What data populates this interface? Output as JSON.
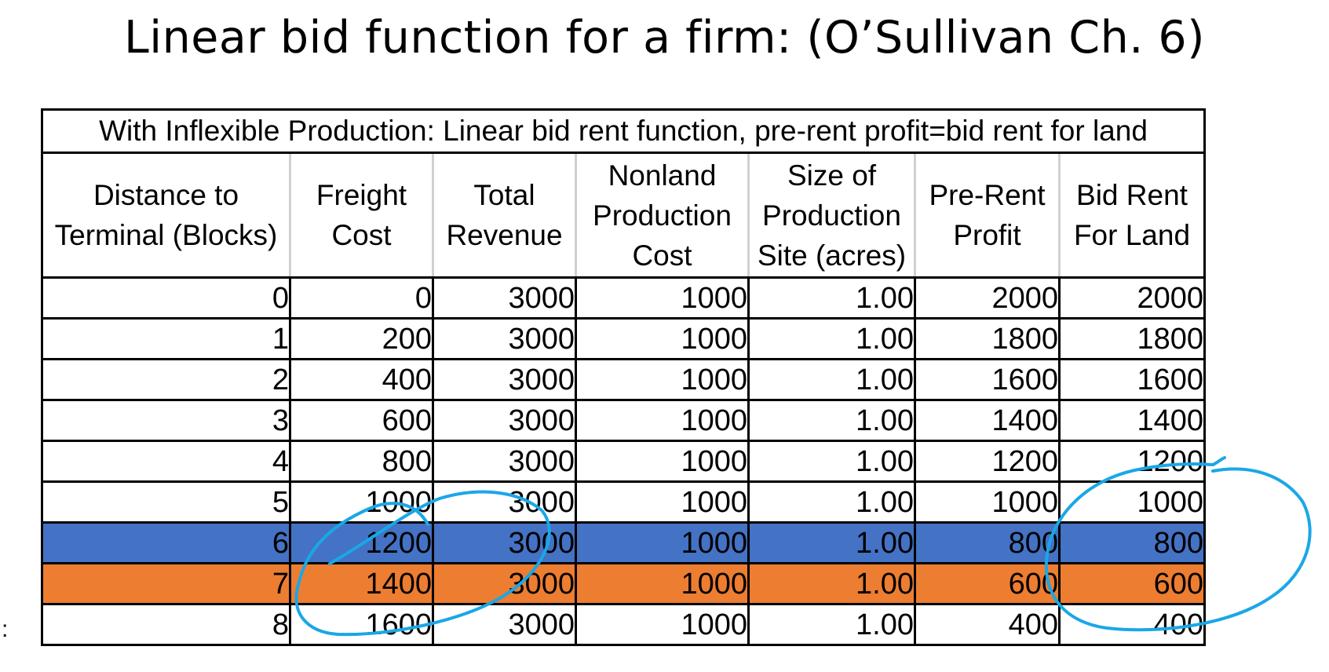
{
  "title": "Linear bid function for a firm: (O’Sullivan Ch. 6)",
  "side_mark": ":",
  "table": {
    "caption": "With Inflexible Production: Linear bid rent function, pre-rent profit=bid rent for land",
    "headers": [
      "Distance to\nTerminal (Blocks)",
      "Freight\nCost",
      "Total\nRevenue",
      "Nonland\nProduction\nCost",
      "Size of\nProduction\nSite (acres)",
      "Pre-Rent\nProfit",
      "Bid Rent\nFor Land"
    ],
    "rows": [
      [
        "0",
        "0",
        "3000",
        "1000",
        "1.00",
        "2000",
        "2000"
      ],
      [
        "1",
        "200",
        "3000",
        "1000",
        "1.00",
        "1800",
        "1800"
      ],
      [
        "2",
        "400",
        "3000",
        "1000",
        "1.00",
        "1600",
        "1600"
      ],
      [
        "3",
        "600",
        "3000",
        "1000",
        "1.00",
        "1400",
        "1400"
      ],
      [
        "4",
        "800",
        "3000",
        "1000",
        "1.00",
        "1200",
        "1200"
      ],
      [
        "5",
        "1000",
        "3000",
        "1000",
        "1.00",
        "1000",
        "1000"
      ],
      [
        "6",
        "1200",
        "3000",
        "1000",
        "1.00",
        "800",
        "800"
      ],
      [
        "7",
        "1400",
        "3000",
        "1000",
        "1.00",
        "600",
        "600"
      ],
      [
        "8",
        "1600",
        "3000",
        "1000",
        "1.00",
        "400",
        "400"
      ]
    ],
    "highlight": {
      "6": "#4472c4",
      "7": "#ed7d31"
    }
  },
  "annotation_color": "#1aa7e6"
}
